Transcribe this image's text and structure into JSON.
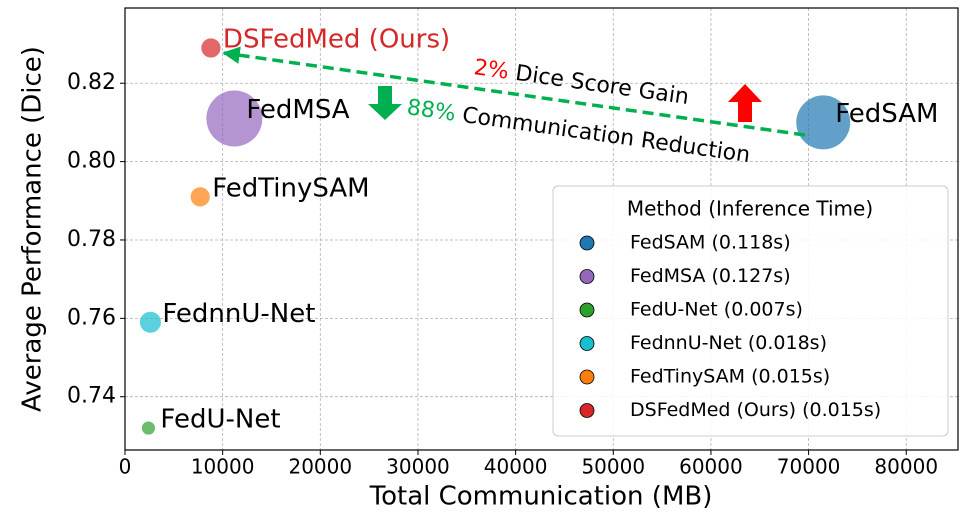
{
  "chart_data": {
    "type": "scatter",
    "x_label": "Total Communication (MB)",
    "y_label": "Average Performance (Dice)",
    "xlim": [
      0,
      85300
    ],
    "xticks": [
      0,
      10000,
      20000,
      30000,
      40000,
      50000,
      60000,
      70000,
      80000
    ],
    "ylim": [
      0.7264,
      0.8392
    ],
    "yticks": [
      0.74,
      0.76,
      0.78,
      {
        "value": 0.8,
        "label": "0.80"
      },
      0.82
    ],
    "grid": true,
    "legend_title": "Method (Inference Time)",
    "legend_loc": "lower right",
    "series": [
      {
        "name": "FedSAM (0.118s)",
        "label": "FedSAM",
        "color": "#1f77b4",
        "x": [
          71500
        ],
        "values": [
          0.81
        ],
        "sizes": [
          0.118
        ]
      },
      {
        "name": "FedMSA (0.127s)",
        "label": "FedMSA",
        "color": "#9467bd",
        "x": [
          11200
        ],
        "values": [
          0.811
        ],
        "sizes": [
          0.127
        ]
      },
      {
        "name": "FedU-Net (0.007s)",
        "label": "FedU-Net",
        "color": "#2ca02c",
        "x": [
          2400
        ],
        "values": [
          0.732
        ],
        "sizes": [
          0.007
        ]
      },
      {
        "name": "FednnU-Net (0.018s)",
        "label": "FednnU-Net",
        "color": "#17becf",
        "x": [
          2600
        ],
        "values": [
          0.759
        ],
        "sizes": [
          0.018
        ]
      },
      {
        "name": "FedTinySAM (0.015s)",
        "label": "FedTinySAM",
        "color": "#ff7f0e",
        "x": [
          7700
        ],
        "values": [
          0.791
        ],
        "sizes": [
          0.015
        ]
      },
      {
        "name": "DSFedMed (Ours) (0.015s)",
        "label": "DSFedMed (Ours)",
        "color": "#d62728",
        "x": [
          8800
        ],
        "values": [
          0.829
        ],
        "sizes": [
          0.015
        ]
      }
    ],
    "annotations": [
      "2%",
      "Dice Score Gain",
      "88%",
      "Communication Reduction"
    ]
  }
}
